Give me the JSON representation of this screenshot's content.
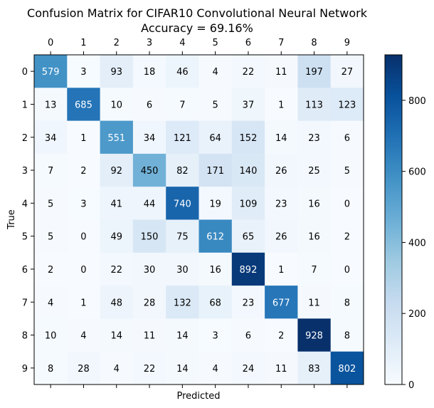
{
  "chart_data": {
    "type": "heatmap",
    "title": "Confusion Matrix for CIFAR10 Convolutional Neural Network",
    "subtitle": "Accuracy = 69.16%",
    "xlabel": "Predicted",
    "ylabel": "True",
    "x_categories": [
      "0",
      "1",
      "2",
      "3",
      "4",
      "5",
      "6",
      "7",
      "8",
      "9"
    ],
    "y_categories": [
      "0",
      "1",
      "2",
      "3",
      "4",
      "5",
      "6",
      "7",
      "8",
      "9"
    ],
    "values": [
      [
        579,
        3,
        93,
        18,
        46,
        4,
        22,
        11,
        197,
        27
      ],
      [
        13,
        685,
        10,
        6,
        7,
        5,
        37,
        1,
        113,
        123
      ],
      [
        34,
        1,
        551,
        34,
        121,
        64,
        152,
        14,
        23,
        6
      ],
      [
        7,
        2,
        92,
        450,
        82,
        171,
        140,
        26,
        25,
        5
      ],
      [
        5,
        3,
        41,
        44,
        740,
        19,
        109,
        23,
        16,
        0
      ],
      [
        5,
        0,
        49,
        150,
        75,
        612,
        65,
        26,
        16,
        2
      ],
      [
        2,
        0,
        22,
        30,
        30,
        16,
        892,
        1,
        7,
        0
      ],
      [
        4,
        1,
        48,
        28,
        132,
        68,
        23,
        677,
        11,
        8
      ],
      [
        10,
        4,
        14,
        11,
        14,
        3,
        6,
        2,
        928,
        8
      ],
      [
        8,
        28,
        4,
        22,
        14,
        4,
        24,
        11,
        83,
        802
      ]
    ],
    "colormap": "Blues",
    "vmin": 0,
    "vmax": 928,
    "colorbar_ticks": [
      0,
      200,
      400,
      600,
      800
    ],
    "x_tick_position": "top"
  }
}
